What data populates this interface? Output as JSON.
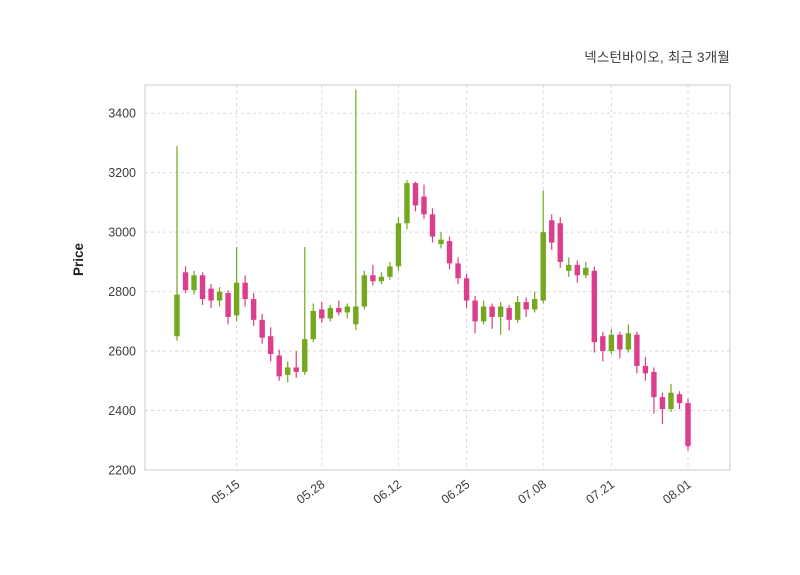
{
  "header": {
    "title": "넥스턴바이오, 최근 3개월"
  },
  "chart_data": {
    "type": "candlestick",
    "title": "넥스턴바이오, 최근 3개월",
    "xlabel": "",
    "ylabel": "Price",
    "ylim": [
      2200,
      3495
    ],
    "yticks": [
      2200,
      2400,
      2600,
      2800,
      3000,
      3200,
      3400
    ],
    "xticks": [
      {
        "index": 7,
        "label": "05.15"
      },
      {
        "index": 17,
        "label": "05.28"
      },
      {
        "index": 26,
        "label": "06.12"
      },
      {
        "index": 34,
        "label": "06.25"
      },
      {
        "index": 43,
        "label": "07.08"
      },
      {
        "index": 51,
        "label": "07.21"
      },
      {
        "index": 60,
        "label": "08.01"
      }
    ],
    "grid": true,
    "legend": "none",
    "up_color": "#74a81f",
    "down_color": "#dd3e8b",
    "grid_color": "#d9d9d9",
    "border_color": "#cccccc",
    "tick_color": "#3d3d3d",
    "candles": [
      [
        2650,
        3290,
        2635,
        2790
      ],
      [
        2865,
        2885,
        2795,
        2805
      ],
      [
        2805,
        2870,
        2790,
        2855
      ],
      [
        2855,
        2865,
        2755,
        2775
      ],
      [
        2810,
        2825,
        2745,
        2770
      ],
      [
        2770,
        2815,
        2750,
        2800
      ],
      [
        2795,
        2805,
        2690,
        2715
      ],
      [
        2720,
        2950,
        2700,
        2830
      ],
      [
        2830,
        2855,
        2750,
        2775
      ],
      [
        2775,
        2795,
        2685,
        2705
      ],
      [
        2705,
        2725,
        2625,
        2645
      ],
      [
        2650,
        2680,
        2565,
        2590
      ],
      [
        2585,
        2605,
        2500,
        2515
      ],
      [
        2520,
        2565,
        2495,
        2545
      ],
      [
        2545,
        2600,
        2510,
        2530
      ],
      [
        2530,
        2950,
        2520,
        2640
      ],
      [
        2640,
        2760,
        2630,
        2735
      ],
      [
        2740,
        2765,
        2695,
        2710
      ],
      [
        2710,
        2755,
        2700,
        2745
      ],
      [
        2745,
        2770,
        2720,
        2730
      ],
      [
        2730,
        2760,
        2710,
        2750
      ],
      [
        2690,
        3480,
        2670,
        2750
      ],
      [
        2750,
        2870,
        2740,
        2855
      ],
      [
        2855,
        2890,
        2820,
        2835
      ],
      [
        2835,
        2865,
        2825,
        2850
      ],
      [
        2850,
        2900,
        2840,
        2885
      ],
      [
        2885,
        3050,
        2870,
        3030
      ],
      [
        3030,
        3175,
        3010,
        3165
      ],
      [
        3165,
        3170,
        3070,
        3090
      ],
      [
        3120,
        3160,
        3045,
        3060
      ],
      [
        3060,
        3080,
        2965,
        2985
      ],
      [
        2960,
        3000,
        2945,
        2975
      ],
      [
        2970,
        2985,
        2875,
        2895
      ],
      [
        2895,
        2915,
        2825,
        2845
      ],
      [
        2845,
        2860,
        2745,
        2770
      ],
      [
        2770,
        2785,
        2660,
        2700
      ],
      [
        2700,
        2770,
        2690,
        2750
      ],
      [
        2750,
        2760,
        2675,
        2715
      ],
      [
        2715,
        2765,
        2655,
        2750
      ],
      [
        2745,
        2755,
        2670,
        2705
      ],
      [
        2705,
        2785,
        2695,
        2765
      ],
      [
        2765,
        2780,
        2715,
        2740
      ],
      [
        2740,
        2800,
        2730,
        2775
      ],
      [
        2770,
        3140,
        2760,
        3000
      ],
      [
        3040,
        3060,
        2940,
        2965
      ],
      [
        3030,
        3050,
        2880,
        2900
      ],
      [
        2870,
        2915,
        2850,
        2890
      ],
      [
        2890,
        2905,
        2830,
        2855
      ],
      [
        2855,
        2900,
        2845,
        2880
      ],
      [
        2870,
        2885,
        2595,
        2630
      ],
      [
        2650,
        2665,
        2565,
        2600
      ],
      [
        2600,
        2675,
        2590,
        2655
      ],
      [
        2655,
        2665,
        2575,
        2605
      ],
      [
        2605,
        2690,
        2595,
        2660
      ],
      [
        2655,
        2665,
        2525,
        2550
      ],
      [
        2550,
        2580,
        2500,
        2525
      ],
      [
        2530,
        2545,
        2390,
        2445
      ],
      [
        2445,
        2460,
        2355,
        2405
      ],
      [
        2405,
        2490,
        2395,
        2460
      ],
      [
        2455,
        2465,
        2405,
        2425
      ],
      [
        2425,
        2440,
        2265,
        2280
      ]
    ]
  }
}
